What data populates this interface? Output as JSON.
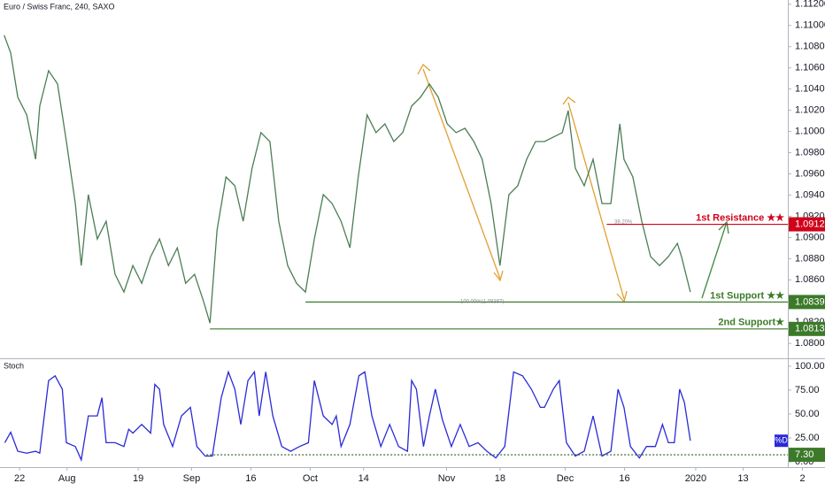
{
  "chart_data": [
    {
      "type": "line",
      "title": "Euro / Swiss Franc, 240, SAXO",
      "color": "#4b7d55",
      "xlim": [
        -3.3,
        135.8
      ],
      "ylim": [
        1.0786,
        1.1124
      ],
      "x": [
        -2.6,
        -1.5,
        -0.3,
        1.2,
        2.7,
        3.4,
        4.9,
        6.4,
        7.9,
        9.4,
        10.4,
        11.6,
        13.1,
        14.6,
        16.1,
        17.6,
        19.1,
        20.6,
        22.1,
        23.6,
        25.1,
        26.6,
        28.0,
        29.5,
        31.0,
        32.1,
        33.3,
        34.8,
        36.3,
        37.7,
        39.2,
        40.7,
        42.2,
        43.7,
        45.2,
        46.7,
        48.2,
        49.7,
        51.2,
        52.7,
        54.2,
        55.7,
        57.1,
        58.6,
        60.1,
        61.6,
        63.1,
        64.6,
        66.1,
        67.6,
        69.1,
        70.6,
        72.1,
        73.6,
        75.1,
        76.6,
        78.0,
        79.5,
        81.0,
        82.5,
        84.0,
        85.5,
        87.0,
        88.5,
        90.0,
        91.5,
        92.5,
        93.7,
        95.2,
        96.7,
        98.2,
        99.7,
        101.2,
        101.9,
        103.4,
        104.9,
        106.4,
        107.9,
        109.4,
        110.9,
        111.6,
        113.1
      ],
      "values": [
        1.10908,
        1.1074,
        1.10323,
        1.10156,
        1.09738,
        1.10239,
        1.10573,
        1.10448,
        1.09905,
        1.0932,
        1.08735,
        1.09404,
        1.08986,
        1.09153,
        1.08652,
        1.08485,
        1.08735,
        1.08568,
        1.08819,
        1.08986,
        1.08735,
        1.08902,
        1.08568,
        1.08652,
        1.08401,
        1.08192,
        1.09069,
        1.09571,
        1.09487,
        1.09153,
        1.09654,
        1.09989,
        1.09905,
        1.09153,
        1.08735,
        1.08568,
        1.08485,
        1.08986,
        1.09404,
        1.0932,
        1.09153,
        1.08902,
        1.09571,
        1.10156,
        1.09989,
        1.10072,
        1.09905,
        1.09989,
        1.10239,
        1.10323,
        1.10448,
        1.10323,
        1.10072,
        1.09989,
        1.1003,
        1.09905,
        1.09738,
        1.0932,
        1.08735,
        1.09404,
        1.09487,
        1.09738,
        1.09905,
        1.09905,
        1.09947,
        1.09989,
        1.10197,
        1.09654,
        1.09487,
        1.09738,
        1.0932,
        1.0932,
        1.10072,
        1.09738,
        1.09571,
        1.09153,
        1.08819,
        1.08735,
        1.08819,
        1.08944,
        1.08819,
        1.08485
      ],
      "yticks": [
        {
          "value": 1.08,
          "label": "1.08000"
        },
        {
          "value": 1.082,
          "label": "1.08200"
        },
        {
          "value": 1.084,
          "label": "1.08400"
        },
        {
          "value": 1.086,
          "label": "1.08600"
        },
        {
          "value": 1.088,
          "label": "1.08800"
        },
        {
          "value": 1.09,
          "label": "1.09000"
        },
        {
          "value": 1.092,
          "label": "1.09200"
        },
        {
          "value": 1.094,
          "label": "1.09400"
        },
        {
          "value": 1.096,
          "label": "1.09600"
        },
        {
          "value": 1.098,
          "label": "1.09800"
        },
        {
          "value": 1.1,
          "label": "1.10000"
        },
        {
          "value": 1.102,
          "label": "1.10200"
        },
        {
          "value": 1.104,
          "label": "1.10400"
        },
        {
          "value": 1.106,
          "label": "1.10600"
        },
        {
          "value": 1.108,
          "label": "1.10800"
        },
        {
          "value": 1.11,
          "label": "1.11000"
        },
        {
          "value": 1.112,
          "label": "1.11200"
        }
      ],
      "levels": [
        {
          "name": "1st Resistance ★★",
          "value": 1.09124,
          "label": "1.09124",
          "color": "#d0021b",
          "x_start": 99.0
        },
        {
          "name": "1st Support ★★",
          "value": 1.08391,
          "label": "1.08391",
          "color": "#3c7a2a",
          "x_start": 48.2
        },
        {
          "name": "2nd Support★",
          "value": 1.08137,
          "label": "1.08137",
          "color": "#3c7a2a",
          "x_start": 32.1
        }
      ],
      "annotations": [
        "38.20%",
        "100.00%(1.08387)"
      ]
    },
    {
      "type": "line",
      "title": "Stoch",
      "color": "#2a2ad8",
      "series_label": "%D",
      "xlim": [
        -3.3,
        135.8
      ],
      "ylim": [
        -5.6,
        108.3
      ],
      "x": [
        -2.5,
        -1.5,
        -0.3,
        1.2,
        2.7,
        3.4,
        4.9,
        6.0,
        7.2,
        7.9,
        9.4,
        10.4,
        11.6,
        13.1,
        13.9,
        14.6,
        16.1,
        17.6,
        18.4,
        19.1,
        20.6,
        22.1,
        22.8,
        23.6,
        24.3,
        25.8,
        27.3,
        28.8,
        29.9,
        31.3,
        32.5,
        34.0,
        35.2,
        36.3,
        37.3,
        38.5,
        39.6,
        40.4,
        41.5,
        42.7,
        44.2,
        45.7,
        47.2,
        48.7,
        49.7,
        51.2,
        52.7,
        53.4,
        54.2,
        55.7,
        57.2,
        58.2,
        59.4,
        60.9,
        62.4,
        63.9,
        65.4,
        66.1,
        66.9,
        68.1,
        69.1,
        70.1,
        71.3,
        72.8,
        74.3,
        75.8,
        77.3,
        78.8,
        80.3,
        81.8,
        83.3,
        84.8,
        86.3,
        87.8,
        88.5,
        90.0,
        91.0,
        92.2,
        93.7,
        95.2,
        96.7,
        98.2,
        99.7,
        100.9,
        101.9,
        103.0,
        104.5,
        105.7,
        107.2,
        108.4,
        109.4,
        110.4,
        111.3,
        112.1,
        113.1
      ],
      "values": [
        20,
        31,
        11,
        9,
        11,
        9,
        85,
        90,
        76,
        20,
        16,
        2,
        48,
        48,
        67,
        20,
        20,
        16,
        34,
        30,
        39,
        30,
        81,
        76,
        39,
        16,
        48,
        57,
        16,
        6,
        6,
        67,
        94,
        76,
        39,
        85,
        94,
        48,
        94,
        48,
        16,
        11,
        16,
        20,
        85,
        48,
        39,
        48,
        16,
        39,
        90,
        94,
        48,
        16,
        39,
        16,
        11,
        85,
        76,
        16,
        48,
        76,
        44,
        16,
        39,
        16,
        20,
        11,
        4,
        16,
        94,
        90,
        76,
        57,
        57,
        76,
        85,
        20,
        6,
        11,
        48,
        6,
        11,
        76,
        57,
        16,
        4,
        16,
        16,
        39,
        20,
        20,
        76,
        62,
        22
      ],
      "yticks": [
        {
          "value": 100,
          "label": "100.00"
        },
        {
          "value": 75,
          "label": "75.00"
        },
        {
          "value": 50,
          "label": "50.00"
        },
        {
          "value": 25,
          "label": "25.00"
        },
        {
          "value": 0,
          "label": "0.00"
        }
      ],
      "level": {
        "value": 7.3,
        "label": "7.30",
        "color": "#3c7a2a",
        "x_start": 31.5
      },
      "xticks": [
        {
          "value": 0,
          "label": "22"
        },
        {
          "value": 8,
          "label": "Aug"
        },
        {
          "value": 20,
          "label": "19"
        },
        {
          "value": 29,
          "label": "Sep"
        },
        {
          "value": 39,
          "label": "16"
        },
        {
          "value": 49,
          "label": "Oct"
        },
        {
          "value": 58,
          "label": "14"
        },
        {
          "value": 72,
          "label": "Nov"
        },
        {
          "value": 81,
          "label": "18"
        },
        {
          "value": 92,
          "label": "Dec"
        },
        {
          "value": 102,
          "label": "16"
        },
        {
          "value": 114,
          "label": "2020"
        },
        {
          "value": 122,
          "label": "13"
        },
        {
          "value": 132,
          "label": "2"
        }
      ]
    }
  ]
}
